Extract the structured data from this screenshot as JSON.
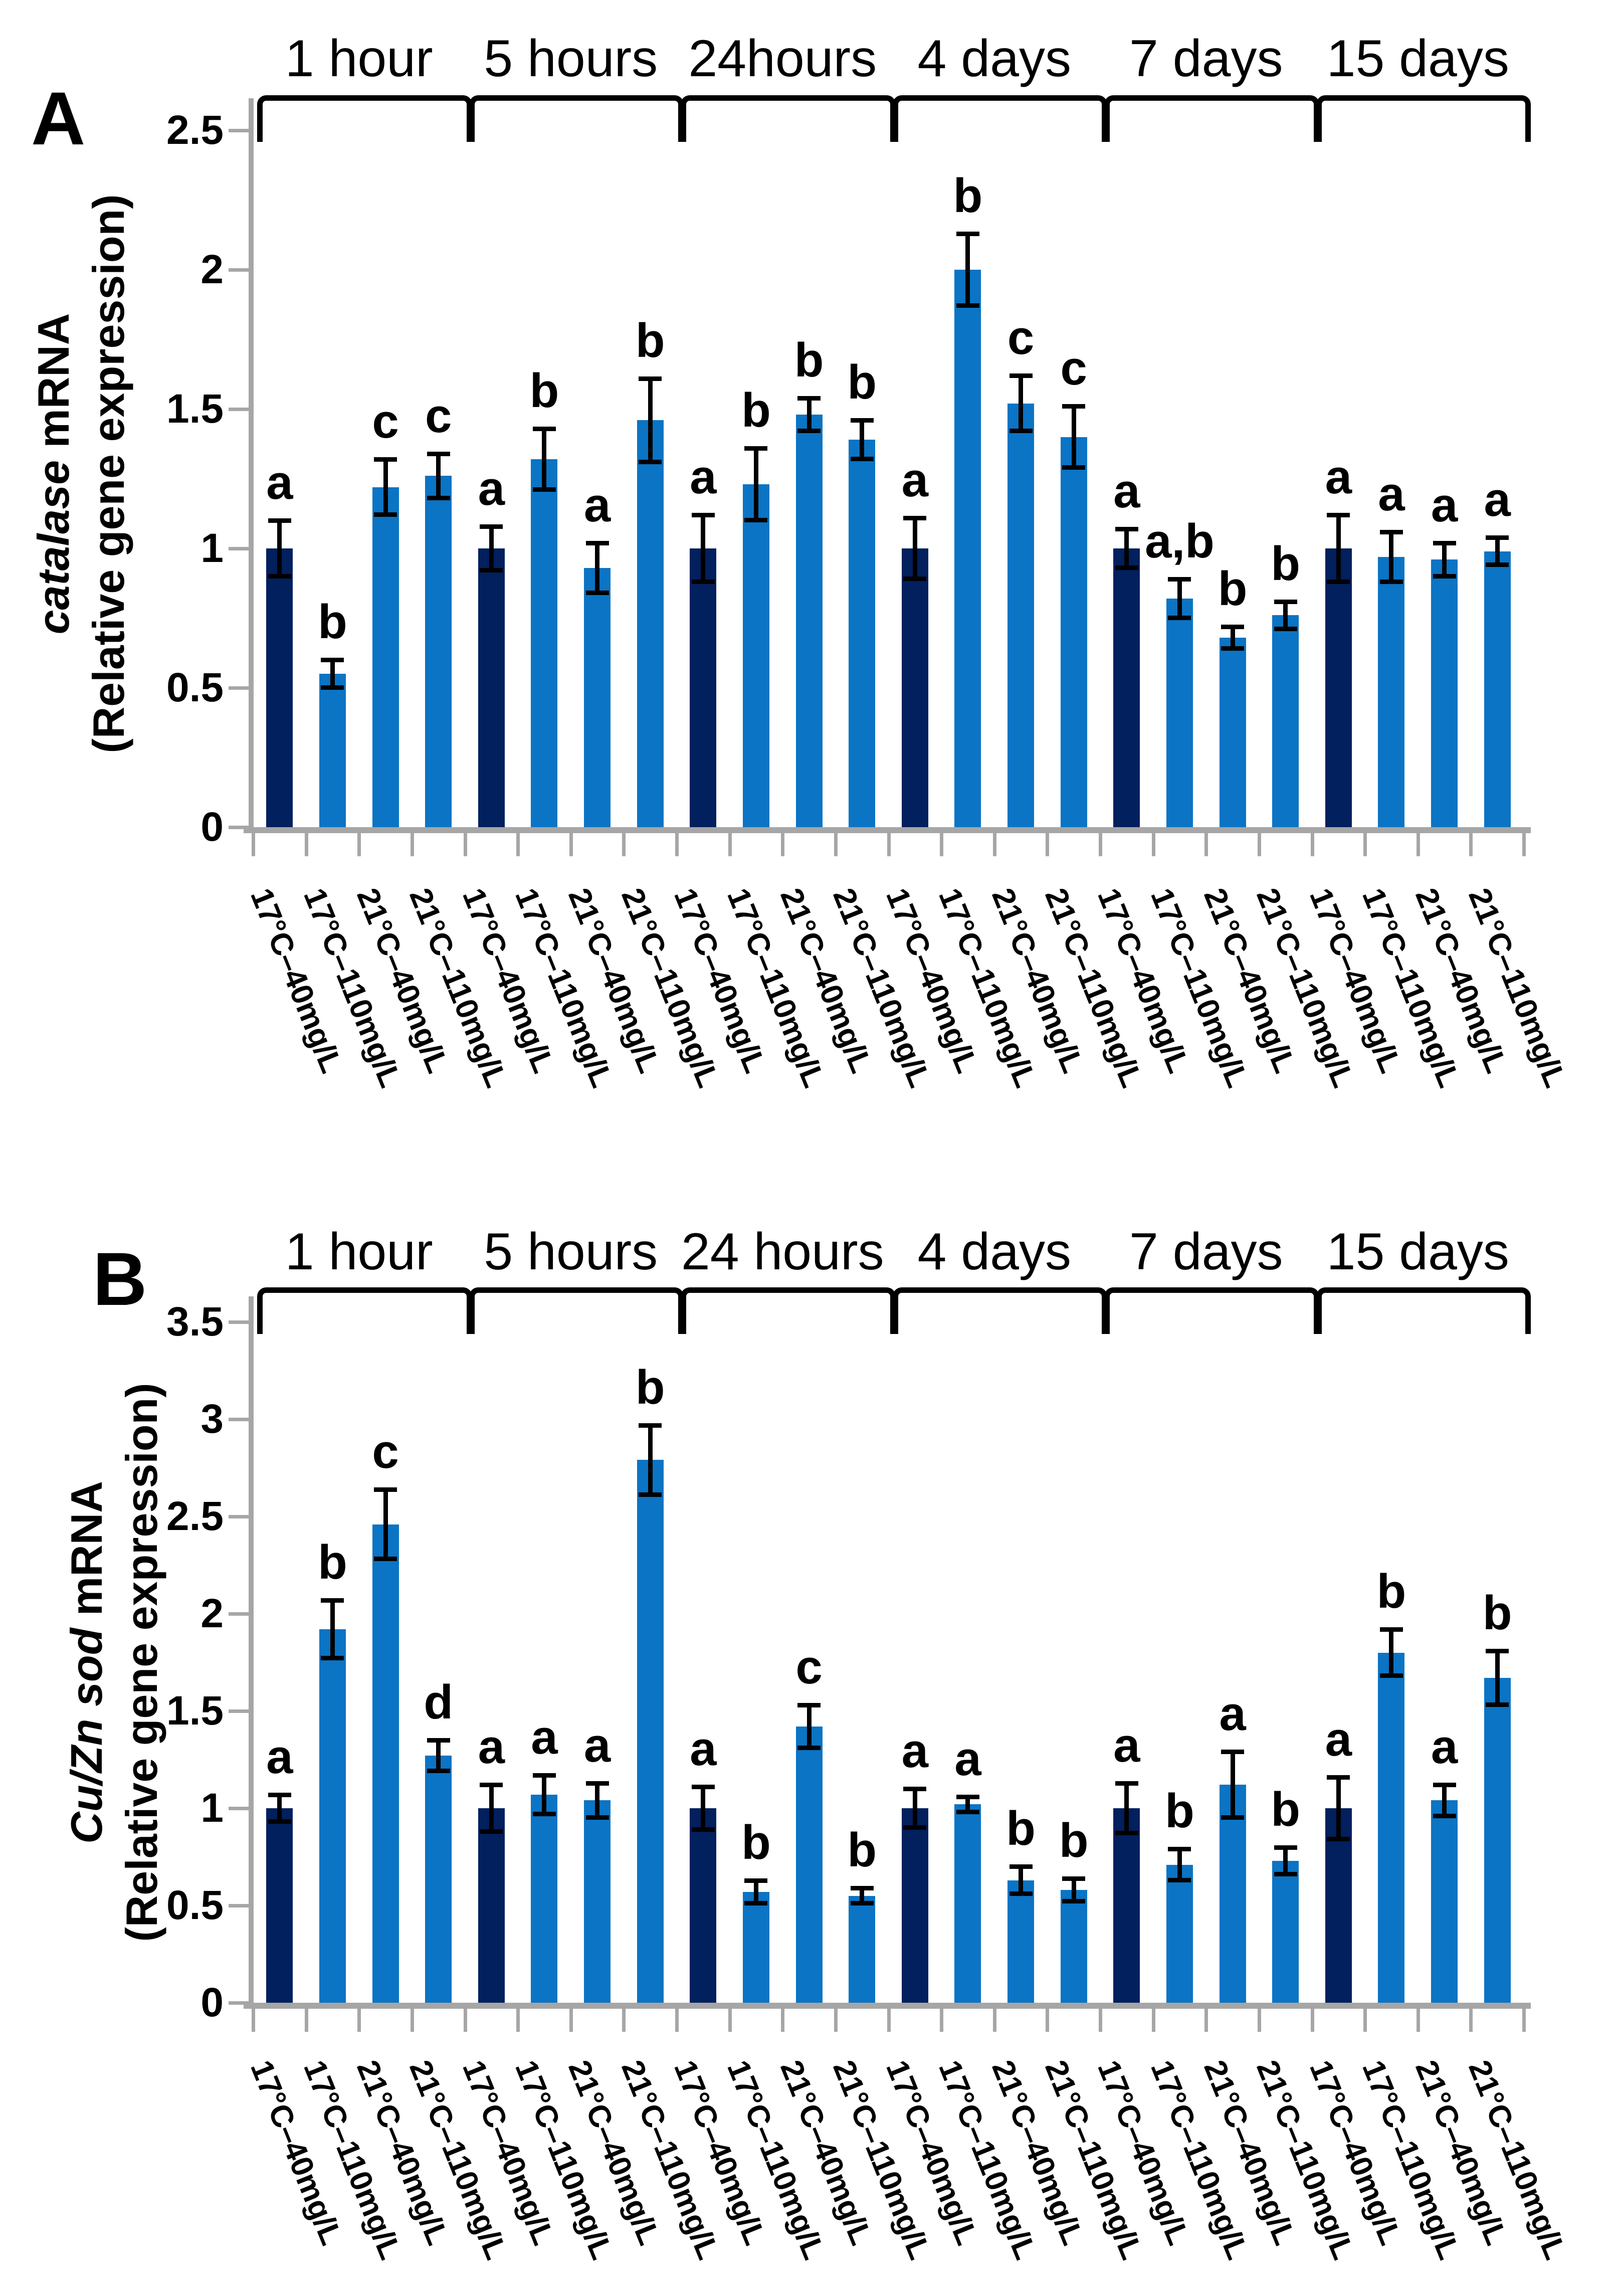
{
  "figure_title": "Gene expression bar charts, panels A and B",
  "colors": {
    "dark_bar": "#021f5e",
    "light_bar": "#0b74c4",
    "axis": "#a6a6a6",
    "error_bar": "#000000",
    "text": "#000000"
  },
  "chart_data": [
    {
      "type": "bar",
      "panel_label": "A",
      "ylabel_italic": "catalase",
      "ylabel_rest": " mRNA",
      "ylabel_line2": "(Relative gene expression)",
      "ylim": [
        0,
        2.5
      ],
      "yticks": [
        "0",
        "0.5",
        "1",
        "1.5",
        "2",
        "2.5"
      ],
      "grid": false,
      "legend": "none",
      "group_labels": [
        "1 hour",
        "5 hours",
        "24hours",
        "4 days",
        "7 days",
        "15 days"
      ],
      "categories": [
        "17°C–40mg/L",
        "17°C–110mg/L",
        "21°C–40mg/L",
        "21°C–110mg/L"
      ],
      "series": [
        {
          "group": "1 hour",
          "values": [
            1.0,
            0.55,
            1.22,
            1.26
          ],
          "errors": [
            0.1,
            0.05,
            0.1,
            0.08
          ],
          "letters": [
            "a",
            "b",
            "c",
            "c"
          ]
        },
        {
          "group": "5 hours",
          "values": [
            1.0,
            1.32,
            0.93,
            1.46
          ],
          "errors": [
            0.08,
            0.11,
            0.09,
            0.15
          ],
          "letters": [
            "a",
            "b",
            "a",
            "b"
          ]
        },
        {
          "group": "24hours",
          "values": [
            1.0,
            1.23,
            1.48,
            1.39
          ],
          "errors": [
            0.12,
            0.13,
            0.06,
            0.07
          ],
          "letters": [
            "a",
            "b",
            "b",
            "b"
          ]
        },
        {
          "group": "4 days",
          "values": [
            1.0,
            2.0,
            1.52,
            1.4
          ],
          "errors": [
            0.11,
            0.13,
            0.1,
            0.11
          ],
          "letters": [
            "a",
            "b",
            "c",
            "c"
          ]
        },
        {
          "group": "7 days",
          "values": [
            1.0,
            0.82,
            0.68,
            0.76
          ],
          "errors": [
            0.07,
            0.07,
            0.04,
            0.05
          ],
          "letters": [
            "a",
            "a,b",
            "b",
            "b"
          ]
        },
        {
          "group": "15 days",
          "values": [
            1.0,
            0.97,
            0.96,
            0.99
          ],
          "errors": [
            0.12,
            0.09,
            0.06,
            0.05
          ],
          "letters": [
            "a",
            "a",
            "a",
            "a"
          ]
        }
      ]
    },
    {
      "type": "bar",
      "panel_label": "B",
      "ylabel_italic": "Cu/Zn sod",
      "ylabel_rest": " mRNA",
      "ylabel_line2": "(Relative gene expression)",
      "ylim": [
        0,
        3.5
      ],
      "yticks": [
        "0",
        "0.5",
        "1",
        "1.5",
        "2",
        "2.5",
        "3",
        "3.5"
      ],
      "grid": false,
      "legend": "none",
      "group_labels": [
        "1 hour",
        "5 hours",
        "24 hours",
        "4 days",
        "7 days",
        "15 days"
      ],
      "categories": [
        "17°C–40mg/L",
        "17°C–110mg/L",
        "21°C–40mg/L",
        "21°C–110mg/L"
      ],
      "series": [
        {
          "group": "1 hour",
          "values": [
            1.0,
            1.92,
            2.46,
            1.27
          ],
          "errors": [
            0.07,
            0.15,
            0.18,
            0.08
          ],
          "letters": [
            "a",
            "b",
            "c",
            "d"
          ]
        },
        {
          "group": "5 hours",
          "values": [
            1.0,
            1.07,
            1.04,
            2.79
          ],
          "errors": [
            0.12,
            0.1,
            0.09,
            0.18
          ],
          "letters": [
            "a",
            "a",
            "a",
            "b"
          ]
        },
        {
          "group": "24 hours",
          "values": [
            1.0,
            0.57,
            1.42,
            0.55
          ],
          "errors": [
            0.11,
            0.06,
            0.11,
            0.04
          ],
          "letters": [
            "a",
            "b",
            "c",
            "b"
          ]
        },
        {
          "group": "4 days",
          "values": [
            1.0,
            1.02,
            0.63,
            0.58
          ],
          "errors": [
            0.1,
            0.04,
            0.07,
            0.06
          ],
          "letters": [
            "a",
            "a",
            "b",
            "b"
          ]
        },
        {
          "group": "7 days",
          "values": [
            1.0,
            0.71,
            1.12,
            0.73
          ],
          "errors": [
            0.13,
            0.08,
            0.17,
            0.07
          ],
          "letters": [
            "a",
            "b",
            "a",
            "b"
          ]
        },
        {
          "group": "15 days",
          "values": [
            1.0,
            1.8,
            1.04,
            1.67
          ],
          "errors": [
            0.16,
            0.12,
            0.08,
            0.14
          ],
          "letters": [
            "a",
            "b",
            "a",
            "b"
          ]
        }
      ]
    }
  ]
}
